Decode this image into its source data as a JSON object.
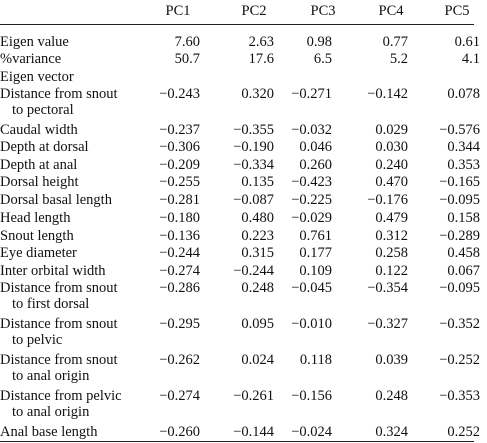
{
  "columns": [
    "PC1",
    "PC2",
    "PC3",
    "PC4",
    "PC5"
  ],
  "rows": [
    {
      "label": "Eigen value",
      "label2": "",
      "values": [
        "7.60",
        "2.63",
        "0.98",
        "0.77",
        "0.61"
      ]
    },
    {
      "label": "%variance",
      "label2": "",
      "values": [
        "50.7",
        "17.6",
        "6.5",
        "5.2",
        "4.1"
      ]
    },
    {
      "label": "Eigen vector",
      "label2": "",
      "values": [
        "",
        "",
        "",
        "",
        ""
      ]
    },
    {
      "label": "Distance from snout",
      "label2": "to pectoral",
      "values": [
        "−0.243",
        "0.320",
        "−0.271",
        "−0.142",
        "0.078"
      ]
    },
    {
      "label": "Caudal width",
      "label2": "",
      "values": [
        "−0.237",
        "−0.355",
        "−0.032",
        "0.029",
        "−0.576"
      ]
    },
    {
      "label": "Depth at dorsal",
      "label2": "",
      "values": [
        "−0.306",
        "−0.190",
        "0.046",
        "0.030",
        "0.344"
      ]
    },
    {
      "label": "Depth at anal",
      "label2": "",
      "values": [
        "−0.209",
        "−0.334",
        "0.260",
        "0.240",
        "0.353"
      ]
    },
    {
      "label": "Dorsal height",
      "label2": "",
      "values": [
        "−0.255",
        "0.135",
        "−0.423",
        "0.470",
        "−0.165"
      ]
    },
    {
      "label": "Dorsal basal length",
      "label2": "",
      "values": [
        "−0.281",
        "−0.087",
        "−0.225",
        "−0.176",
        "−0.095"
      ]
    },
    {
      "label": "Head length",
      "label2": "",
      "values": [
        "−0.180",
        "0.480",
        "−0.029",
        "0.479",
        "0.158"
      ]
    },
    {
      "label": "Snout length",
      "label2": "",
      "values": [
        "−0.136",
        "0.223",
        "0.761",
        "0.312",
        "−0.289"
      ]
    },
    {
      "label": "Eye diameter",
      "label2": "",
      "values": [
        "−0.244",
        "0.315",
        "0.177",
        "0.258",
        "0.458"
      ]
    },
    {
      "label": "Inter orbital width",
      "label2": "",
      "values": [
        "−0.274",
        "−0.244",
        "0.109",
        "0.122",
        "0.067"
      ]
    },
    {
      "label": "Distance from snout",
      "label2": "to first dorsal",
      "values": [
        "−0.286",
        "0.248",
        "−0.045",
        "−0.354",
        "−0.095"
      ]
    },
    {
      "label": "Distance from snout",
      "label2": "to pelvic",
      "values": [
        "−0.295",
        "0.095",
        "−0.010",
        "−0.327",
        "−0.352"
      ]
    },
    {
      "label": "Distance from snout",
      "label2": "to anal origin",
      "values": [
        "−0.262",
        "0.024",
        "0.118",
        "0.039",
        "−0.252"
      ]
    },
    {
      "label": "Distance from pelvic",
      "label2": "to anal origin",
      "values": [
        "−0.274",
        "−0.261",
        "−0.156",
        "0.248",
        "−0.353"
      ]
    },
    {
      "label": "Anal base length",
      "label2": "",
      "values": [
        "−0.260",
        "−0.144",
        "−0.024",
        "0.324",
        "0.252"
      ]
    }
  ]
}
